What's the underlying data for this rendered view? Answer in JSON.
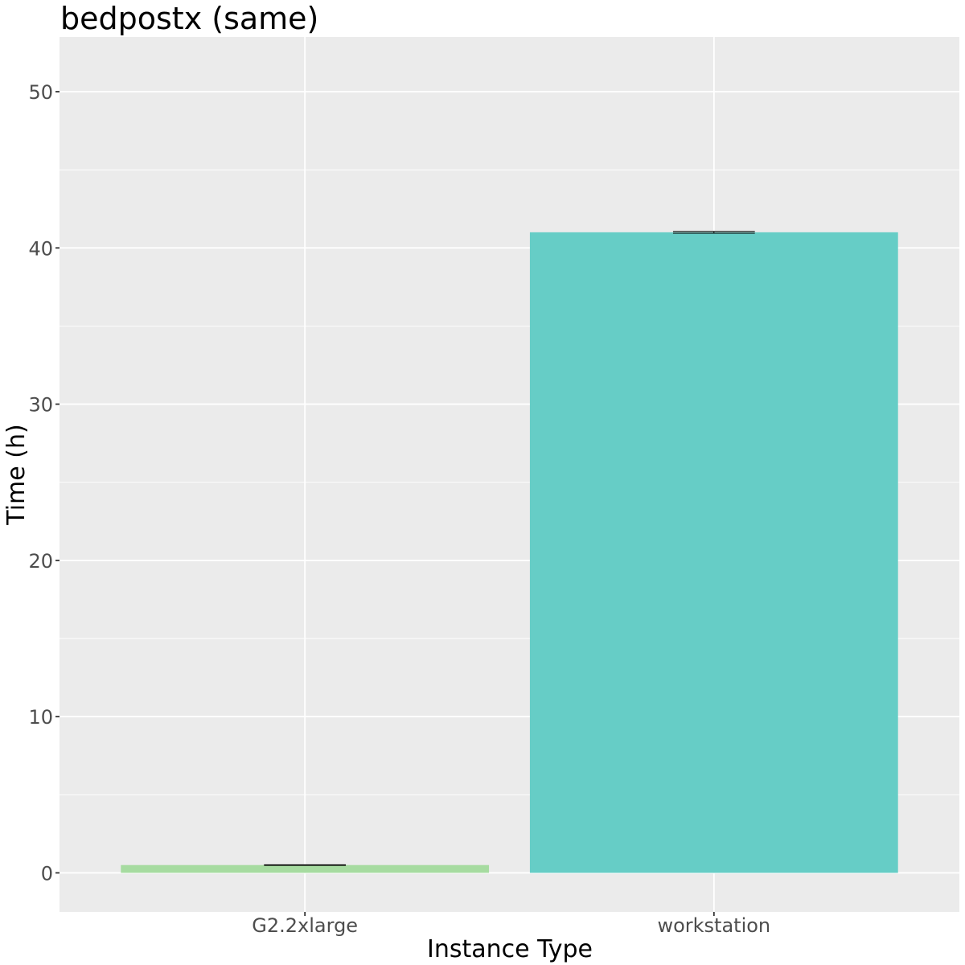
{
  "chart_data": {
    "type": "bar",
    "title": "bedpostx (same)",
    "xlabel": "Instance Type",
    "ylabel": "Time (h)",
    "categories": [
      "G2.2xlarge",
      "workstation"
    ],
    "values": [
      0.5,
      41.0
    ],
    "errors": [
      0.02,
      0.06
    ],
    "colors": [
      "#a6dba0",
      "#66cdc6"
    ],
    "ylim": [
      -2.5,
      53.5
    ],
    "yticks": [
      0,
      10,
      20,
      30,
      40,
      50
    ],
    "grid": true,
    "legend": "none",
    "panel_background": "#ebebeb",
    "grid_color": "#ffffff"
  }
}
